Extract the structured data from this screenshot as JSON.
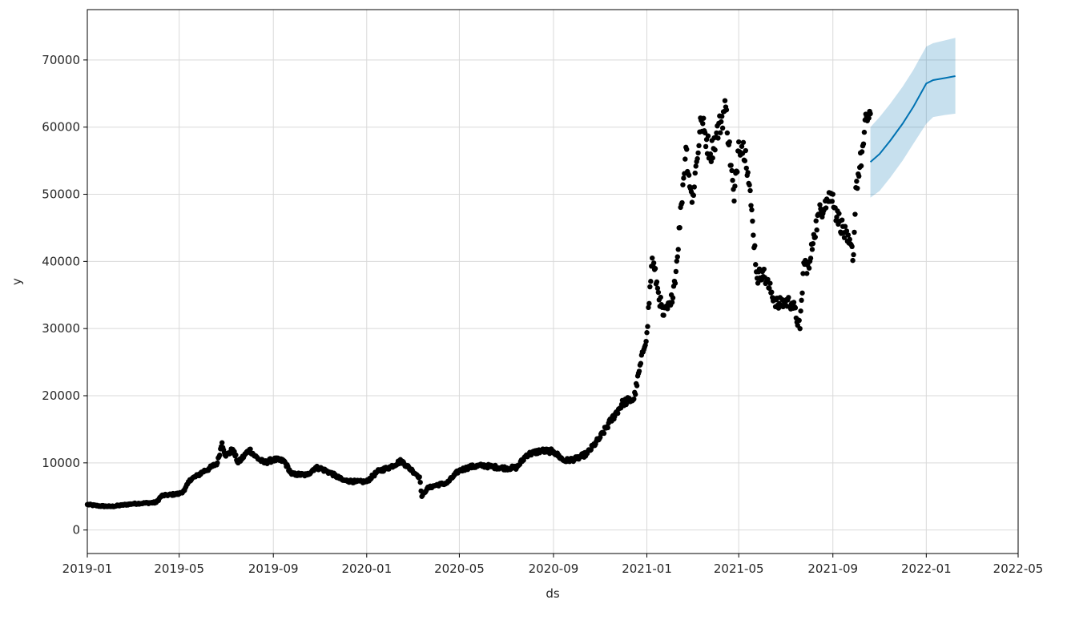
{
  "chart_data": {
    "type": "scatter",
    "xlabel": "ds",
    "ylabel": "y",
    "grid": true,
    "xlim": [
      "2019-01-01",
      "2022-05-01"
    ],
    "ylim": [
      -3500,
      77500
    ],
    "x_ticks": [
      "2019-01",
      "2019-05",
      "2019-09",
      "2020-01",
      "2020-05",
      "2020-09",
      "2021-01",
      "2021-05",
      "2021-09",
      "2022-01",
      "2022-05"
    ],
    "y_ticks": [
      0,
      10000,
      20000,
      30000,
      40000,
      50000,
      60000,
      70000
    ],
    "y_tick_labels": [
      "0",
      "10000",
      "20000",
      "30000",
      "40000",
      "50000",
      "60000",
      "70000"
    ],
    "colors": {
      "points": "#000000",
      "forecast_line": "#0072B2",
      "interval_fill": "#0072B2",
      "grid": "#d9d9d9"
    },
    "series": [
      {
        "type": "scatter",
        "x": [
          "2019-01-01",
          "2019-01-15",
          "2019-02-01",
          "2019-02-15",
          "2019-03-01",
          "2019-03-15",
          "2019-04-01",
          "2019-04-08",
          "2019-04-15",
          "2019-05-01",
          "2019-05-08",
          "2019-05-15",
          "2019-05-25",
          "2019-06-01",
          "2019-06-10",
          "2019-06-20",
          "2019-06-26",
          "2019-07-01",
          "2019-07-10",
          "2019-07-17",
          "2019-08-01",
          "2019-08-08",
          "2019-08-20",
          "2019-09-01",
          "2019-09-15",
          "2019-09-25",
          "2019-10-01",
          "2019-10-15",
          "2019-10-26",
          "2019-11-01",
          "2019-11-15",
          "2019-12-01",
          "2019-12-18",
          "2020-01-01",
          "2020-01-15",
          "2020-02-01",
          "2020-02-15",
          "2020-03-01",
          "2020-03-10",
          "2020-03-13",
          "2020-03-20",
          "2020-04-01",
          "2020-04-15",
          "2020-04-30",
          "2020-05-15",
          "2020-06-01",
          "2020-06-15",
          "2020-07-01",
          "2020-07-15",
          "2020-07-28",
          "2020-08-15",
          "2020-09-01",
          "2020-09-15",
          "2020-10-01",
          "2020-10-15",
          "2020-11-01",
          "2020-11-15",
          "2020-12-01",
          "2020-12-15",
          "2020-12-27",
          "2021-01-01",
          "2021-01-08",
          "2021-01-15",
          "2021-01-22",
          "2021-02-01",
          "2021-02-08",
          "2021-02-15",
          "2021-02-21",
          "2021-03-01",
          "2021-03-13",
          "2021-03-25",
          "2021-04-01",
          "2021-04-14",
          "2021-04-25",
          "2021-05-01",
          "2021-05-10",
          "2021-05-19",
          "2021-05-25",
          "2021-06-01",
          "2021-06-10",
          "2021-06-21",
          "2021-07-01",
          "2021-07-10",
          "2021-07-20",
          "2021-07-25",
          "2021-08-01",
          "2021-08-07",
          "2021-08-14",
          "2021-08-22",
          "2021-09-01",
          "2021-09-06",
          "2021-09-10",
          "2021-09-20",
          "2021-09-28",
          "2021-10-01",
          "2021-10-06",
          "2021-10-11",
          "2021-10-15",
          "2021-10-20"
        ],
        "y": [
          3800,
          3600,
          3500,
          3700,
          3900,
          4000,
          4100,
          5100,
          5200,
          5400,
          5900,
          7500,
          8100,
          8700,
          9200,
          10000,
          13000,
          11000,
          12000,
          10000,
          12000,
          11000,
          10000,
          10500,
          10300,
          8300,
          8300,
          8200,
          9300,
          9200,
          8500,
          7400,
          7200,
          7200,
          8700,
          9400,
          10300,
          8800,
          7900,
          5000,
          6200,
          6700,
          7000,
          8800,
          9400,
          9600,
          9400,
          9200,
          9300,
          11200,
          11800,
          11700,
          10300,
          10600,
          11400,
          13800,
          16300,
          19000,
          19500,
          26500,
          29400,
          40500,
          36000,
          32000,
          33500,
          38500,
          48500,
          57000,
          48800,
          61000,
          56000,
          58500,
          63000,
          49000,
          57800,
          56500,
          46000,
          37500,
          38500,
          36000,
          33500,
          34000,
          33800,
          30000,
          39800,
          39000,
          44000,
          47000,
          49000,
          50000,
          46600,
          46000,
          43000,
          41000,
          51000,
          54000,
          57500,
          61500,
          62000
        ]
      },
      {
        "type": "line",
        "name": "",
        "x": [
          "2021-10-20",
          "2021-11-01",
          "2021-11-15",
          "2021-12-01",
          "2021-12-15",
          "2022-01-01",
          "2022-01-10",
          "2022-01-25",
          "2022-02-08"
        ],
        "y": [
          54800,
          56000,
          58000,
          60500,
          63000,
          66500,
          67000,
          67300,
          67600
        ],
        "lower": [
          49500,
          50500,
          52500,
          55000,
          57500,
          60500,
          61500,
          61800,
          62000
        ],
        "upper": [
          60000,
          61500,
          63500,
          66000,
          68500,
          72000,
          72500,
          72900,
          73300
        ]
      }
    ]
  }
}
